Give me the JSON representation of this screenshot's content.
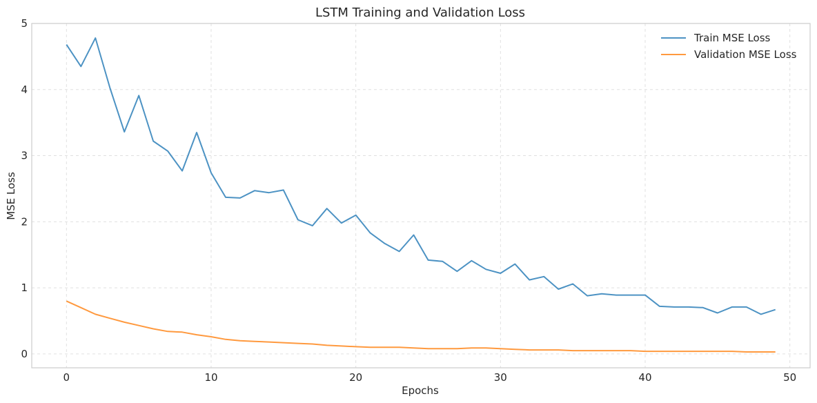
{
  "chart_data": {
    "type": "line",
    "title": "LSTM Training and Validation Loss",
    "xlabel": "Epochs",
    "ylabel": "MSE Loss",
    "xlim": [
      -2.4,
      51.4
    ],
    "ylim": [
      -0.21,
      5.0
    ],
    "xticks": [
      0,
      10,
      20,
      30,
      40,
      50
    ],
    "yticks": [
      0,
      1,
      2,
      3,
      4,
      5
    ],
    "grid": true,
    "legend_position": "top-right",
    "x": [
      0,
      1,
      2,
      3,
      4,
      5,
      6,
      7,
      8,
      9,
      10,
      11,
      12,
      13,
      14,
      15,
      16,
      17,
      18,
      19,
      20,
      21,
      22,
      23,
      24,
      25,
      26,
      27,
      28,
      29,
      30,
      31,
      32,
      33,
      34,
      35,
      36,
      37,
      38,
      39,
      40,
      41,
      42,
      43,
      44,
      45,
      46,
      47,
      48,
      49
    ],
    "series": [
      {
        "name": "Train MSE Loss",
        "color": "#4c92c3",
        "values": [
          4.68,
          4.35,
          4.78,
          4.03,
          3.36,
          3.91,
          3.22,
          3.07,
          2.77,
          3.35,
          2.74,
          2.37,
          2.36,
          2.47,
          2.44,
          2.48,
          2.03,
          1.94,
          2.2,
          1.98,
          2.1,
          1.83,
          1.67,
          1.55,
          1.8,
          1.42,
          1.4,
          1.25,
          1.41,
          1.28,
          1.22,
          1.36,
          1.12,
          1.17,
          0.98,
          1.06,
          0.88,
          0.91,
          0.89,
          0.89,
          0.89,
          0.72,
          0.71,
          0.71,
          0.7,
          0.62,
          0.71,
          0.71,
          0.6,
          0.67
        ]
      },
      {
        "name": "Validation MSE Loss",
        "color": "#ff993e",
        "values": [
          0.8,
          0.7,
          0.6,
          0.54,
          0.48,
          0.43,
          0.38,
          0.34,
          0.33,
          0.29,
          0.26,
          0.22,
          0.2,
          0.19,
          0.18,
          0.17,
          0.16,
          0.15,
          0.13,
          0.12,
          0.11,
          0.1,
          0.1,
          0.1,
          0.09,
          0.08,
          0.08,
          0.08,
          0.09,
          0.09,
          0.08,
          0.07,
          0.06,
          0.06,
          0.06,
          0.05,
          0.05,
          0.05,
          0.05,
          0.05,
          0.04,
          0.04,
          0.04,
          0.04,
          0.04,
          0.04,
          0.04,
          0.03,
          0.03,
          0.03
        ]
      }
    ]
  }
}
